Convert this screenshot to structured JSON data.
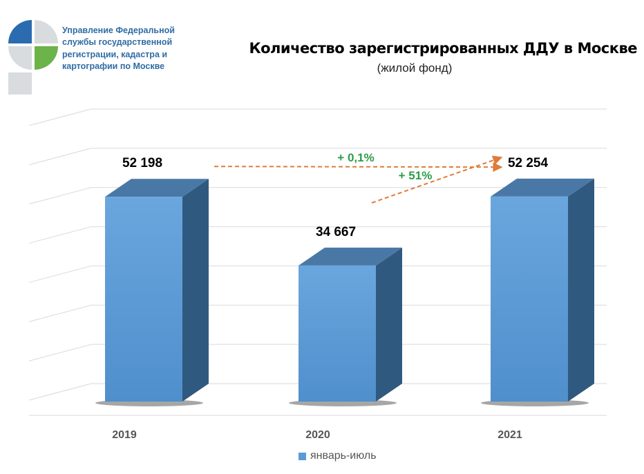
{
  "organization": {
    "lines": [
      "Управление Федеральной",
      "службы государственной",
      "регистрации, кадастра и",
      "картографии по Москве"
    ]
  },
  "colors": {
    "bar_front": "#5b9bd5",
    "bar_side": "#30597f",
    "bar_top": "#4a78a6",
    "arrow": "#e07b39",
    "change_label": "#2a9d4a",
    "org_text": "#2f6ca5",
    "gridline": "#d9d9d9"
  },
  "chart_data": {
    "type": "bar",
    "title": "Количество зарегистрированных ДДУ в Москве",
    "subtitle": "(жилой фонд)",
    "categories": [
      "2019",
      "2020",
      "2021"
    ],
    "series": [
      {
        "name": "январь-июль",
        "values": [
          52198,
          34667,
          52254
        ]
      }
    ],
    "data_labels": [
      "52 198",
      "34 667",
      "52 254"
    ],
    "ylim": [
      0,
      70000
    ],
    "grid": true,
    "legend": "bottom",
    "annotations": [
      {
        "text": "+ 0,1%",
        "from": "2019",
        "to": "2021"
      },
      {
        "text": "+ 51%",
        "from": "2020",
        "to": "2021"
      }
    ]
  }
}
